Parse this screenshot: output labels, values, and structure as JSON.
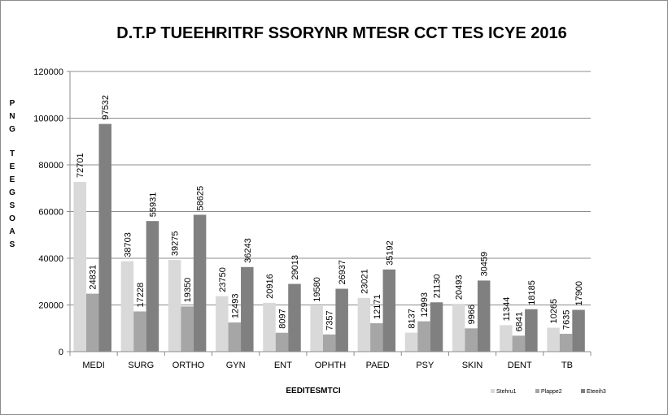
{
  "chart_data": {
    "type": "bar",
    "title": "D.T.P TUEEHRITRF SSORYNR MTESR CCT TES ICYE 2016",
    "xlabel": "EEDITESMTCI",
    "ylabel": "PNG TEEGSOAS",
    "ylim": [
      0,
      120000
    ],
    "yticks": [
      "0",
      "20000",
      "40000",
      "60000",
      "80000",
      "100000",
      "120000"
    ],
    "grid": true,
    "legend_position": "bottom-right",
    "categories": [
      "MEDI",
      "SURG",
      "ORTHO",
      "GYN",
      "ENT",
      "OPHTH",
      "PAED",
      "PSY",
      "SKIN",
      "DENT",
      "TB"
    ],
    "series": [
      {
        "name": "Stehru1",
        "color": "#d9d9d9",
        "values": [
          72701,
          38703,
          39275,
          23750,
          20916,
          19580,
          23021,
          8137,
          20493,
          11344,
          10265
        ]
      },
      {
        "name": "Plappe2",
        "color": "#a6a6a6",
        "values": [
          24831,
          17228,
          19350,
          12493,
          8097,
          7357,
          12171,
          12993,
          9966,
          6841,
          7635
        ]
      },
      {
        "name": "Eteeih3",
        "color": "#808080",
        "values": [
          97532,
          55931,
          58625,
          36243,
          29013,
          26937,
          35192,
          21130,
          30459,
          18185,
          17900
        ]
      }
    ]
  }
}
